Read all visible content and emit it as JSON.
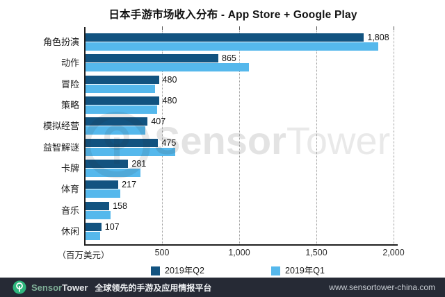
{
  "title": "日本手游市场收入分布 - App Store + Google Play",
  "chart_data": {
    "type": "bar",
    "orientation": "horizontal",
    "title": "日本手游市场收入分布 - App Store + Google Play",
    "categories": [
      "角色扮演",
      "动作",
      "冒险",
      "策略",
      "模拟经营",
      "益智解谜",
      "卡牌",
      "体育",
      "音乐",
      "休闲"
    ],
    "series": [
      {
        "name": "2019年Q2",
        "color": "#125380",
        "values": [
          1808,
          865,
          480,
          480,
          407,
          475,
          281,
          217,
          158,
          107
        ],
        "value_labels": [
          "1,808",
          "865",
          "480",
          "480",
          "407",
          "475",
          "281",
          "217",
          "158",
          "107"
        ]
      },
      {
        "name": "2019年Q1",
        "color": "#55B8EC",
        "values": [
          1900,
          1065,
          455,
          470,
          390,
          585,
          360,
          230,
          167,
          100
        ],
        "note": "Q1 values estimated from bar lengths; no data labels shown"
      }
    ],
    "xlim": [
      0,
      2000
    ],
    "xtick_values": [
      500,
      1000,
      1500,
      2000
    ],
    "xtick_labels": [
      "500",
      "1,000",
      "1,500",
      "2,000"
    ],
    "unit_label": "（百万美元）",
    "grid": "dotted-vertical",
    "legend_position": "bottom"
  },
  "watermark": {
    "text_bold": "Sensor",
    "text_light": "Tower"
  },
  "footer": {
    "brand_green": "Sensor",
    "brand_white": "Tower",
    "tagline": "全球领先的手游及应用情报平台",
    "url": "www.sensortower-china.com"
  },
  "colors": {
    "q2_bar": "#125380",
    "q1_bar": "#55B8EC",
    "footer_bg": "#262A35",
    "logo_green": "#2EB67D"
  }
}
